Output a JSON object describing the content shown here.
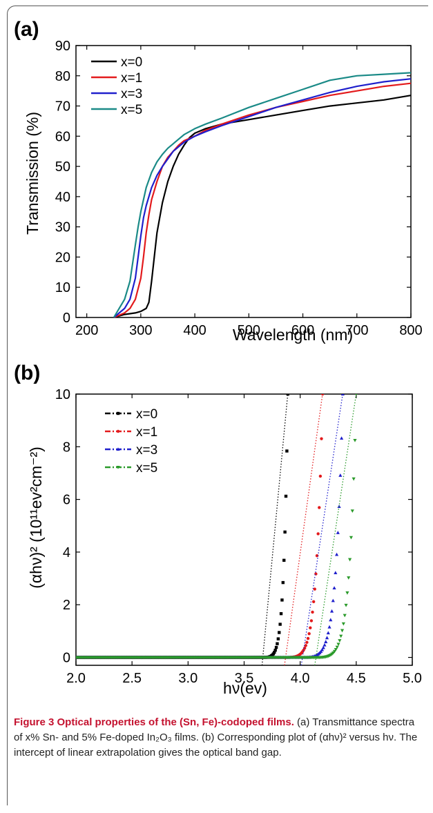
{
  "chart_data": [
    {
      "panel": "(a)",
      "type": "line",
      "xlabel": "Wavelength (nm)",
      "ylabel": "Transmission (%)",
      "xlim": [
        180,
        800
      ],
      "ylim": [
        0,
        90
      ],
      "xticks": [
        200,
        300,
        400,
        500,
        600,
        700,
        800
      ],
      "yticks": [
        0,
        10,
        20,
        30,
        40,
        50,
        60,
        70,
        80,
        90
      ],
      "legend_position": "top-left",
      "series": [
        {
          "name": "x=0",
          "color": "#000000",
          "x": [
            250,
            270,
            290,
            300,
            310,
            315,
            320,
            325,
            330,
            340,
            350,
            360,
            370,
            380,
            390,
            400,
            420,
            450,
            500,
            550,
            600,
            650,
            700,
            750,
            800
          ],
          "y": [
            0,
            1,
            1.5,
            2,
            3,
            5,
            12,
            20,
            28,
            38,
            45,
            50,
            54,
            57,
            59.5,
            61,
            62.5,
            64,
            65.5,
            67,
            68.5,
            70,
            71,
            72,
            73.5
          ]
        },
        {
          "name": "x=1",
          "color": "#e31a1c",
          "x": [
            250,
            270,
            280,
            290,
            300,
            305,
            310,
            315,
            320,
            330,
            340,
            350,
            360,
            370,
            380,
            400,
            420,
            450,
            500,
            550,
            600,
            650,
            700,
            750,
            800
          ],
          "y": [
            0,
            1.5,
            3,
            6,
            13,
            20,
            28,
            34,
            39,
            45,
            50,
            53,
            55,
            57,
            58.5,
            60,
            62,
            64,
            67,
            69.5,
            71.5,
            73.5,
            75,
            76.5,
            77.5
          ]
        },
        {
          "name": "x=3",
          "color": "#1f1fcc",
          "x": [
            250,
            270,
            280,
            290,
            295,
            300,
            305,
            310,
            320,
            330,
            340,
            350,
            360,
            370,
            380,
            400,
            420,
            450,
            500,
            550,
            600,
            650,
            700,
            750,
            800
          ],
          "y": [
            0,
            3,
            6,
            13,
            20,
            27,
            33,
            37,
            43,
            47,
            50,
            52.5,
            55,
            56.5,
            58,
            60,
            61.5,
            63.5,
            66.5,
            69.5,
            72,
            74.5,
            76.5,
            78,
            79
          ]
        },
        {
          "name": "x=5",
          "color": "#1a8a87",
          "x": [
            250,
            270,
            280,
            290,
            295,
            300,
            305,
            310,
            320,
            330,
            340,
            350,
            360,
            370,
            380,
            400,
            420,
            450,
            500,
            550,
            600,
            650,
            700,
            750,
            800
          ],
          "y": [
            0,
            6,
            12,
            24,
            30,
            35,
            39,
            43,
            48,
            51.5,
            54,
            56,
            57.5,
            59,
            60.5,
            62.5,
            64,
            66,
            69.5,
            72.5,
            75.5,
            78.5,
            80,
            80.5,
            81
          ]
        }
      ]
    },
    {
      "panel": "(b)",
      "type": "scatter",
      "xlabel": "hν(ev)",
      "ylabel": "(αhν)² (10¹¹ev²cm⁻²)",
      "xlim": [
        2.0,
        5.0
      ],
      "ylim": [
        -0.3,
        10
      ],
      "xticks": [
        "2.0",
        "2.5",
        "3.0",
        "3.5",
        "4.0",
        "4.5",
        "5.0"
      ],
      "yticks": [
        "0",
        "2",
        "4",
        "6",
        "8",
        "10"
      ],
      "legend_position": "top-left",
      "series": [
        {
          "name": "x=0",
          "color": "#000000",
          "marker": "square",
          "Eg": 3.68,
          "x_end": 3.89
        },
        {
          "name": "x=1",
          "color": "#e31a1c",
          "marker": "circle",
          "Eg": 3.88,
          "x_end": 4.2
        },
        {
          "name": "x=3",
          "color": "#1f1fcc",
          "marker": "triangle-up",
          "Eg": 4.03,
          "x_end": 4.38
        },
        {
          "name": "x=5",
          "color": "#2a9a2a",
          "marker": "triangle-down",
          "Eg": 4.15,
          "x_end": 4.5
        }
      ]
    }
  ],
  "caption": {
    "title": "Figure 3 Optical properties of the (Sn, Fe)-codoped films.",
    "text": "(a) Transmittance spectra of x% Sn- and 5% Fe-doped In₂O₃ films. (b) Corresponding plot of (αhν)² versus hν. The intercept of linear extrapolation gives the optical band gap."
  }
}
